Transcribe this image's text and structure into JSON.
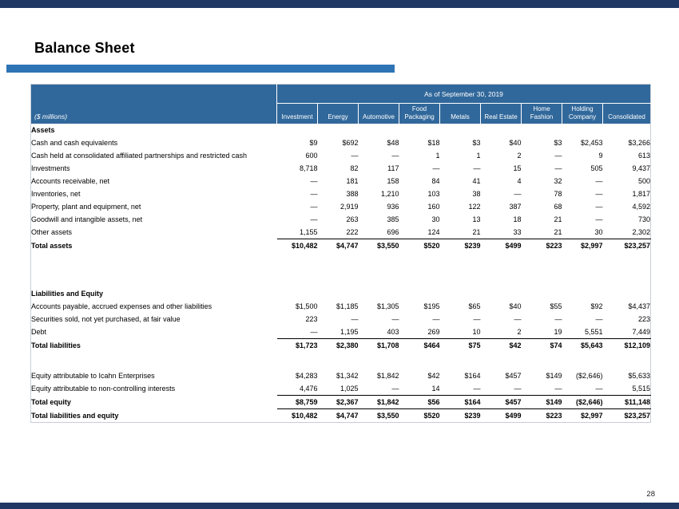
{
  "slide": {
    "title": "Balance Sheet",
    "page_number": "28"
  },
  "colors": {
    "bar_navy": "#1F3864",
    "accent_blue": "#2E74B5",
    "header_blue": "#31689B"
  },
  "table": {
    "header_span": "As of September 30, 2019",
    "row_label_header": "($ millions)",
    "columns": [
      "Investment",
      "Energy",
      "Automotive",
      "Food Packaging",
      "Metals",
      "Real Estate",
      "Home Fashion",
      "Holding Company",
      "Consolidated"
    ],
    "rows": [
      {
        "label": "Assets",
        "style": "section",
        "values": [
          "",
          "",
          "",
          "",
          "",
          "",
          "",
          "",
          ""
        ]
      },
      {
        "label": "Cash and cash equivalents",
        "style": "normal",
        "values": [
          "$9",
          "$692",
          "$48",
          "$18",
          "$3",
          "$40",
          "$3",
          "$2,453",
          "$3,266"
        ]
      },
      {
        "label": "Cash held at consolidated affiliated partnerships and restricted cash",
        "style": "normal",
        "values": [
          "600",
          "—",
          "—",
          "1",
          "1",
          "2",
          "—",
          "9",
          "613"
        ]
      },
      {
        "label": "Investments",
        "style": "normal",
        "values": [
          "8,718",
          "82",
          "117",
          "—",
          "—",
          "15",
          "—",
          "505",
          "9,437"
        ]
      },
      {
        "label": "Accounts receivable, net",
        "style": "normal",
        "values": [
          "—",
          "181",
          "158",
          "84",
          "41",
          "4",
          "32",
          "—",
          "500"
        ]
      },
      {
        "label": "Inventories, net",
        "style": "normal",
        "values": [
          "—",
          "388",
          "1,210",
          "103",
          "38",
          "—",
          "78",
          "—",
          "1,817"
        ]
      },
      {
        "label": "Property, plant and equipment, net",
        "style": "normal",
        "values": [
          "—",
          "2,919",
          "936",
          "160",
          "122",
          "387",
          "68",
          "—",
          "4,592"
        ]
      },
      {
        "label": "Goodwill and intangible assets, net",
        "style": "normal",
        "values": [
          "—",
          "263",
          "385",
          "30",
          "13",
          "18",
          "21",
          "—",
          "730"
        ]
      },
      {
        "label": "Other assets",
        "style": "rule",
        "values": [
          "1,155",
          "222",
          "696",
          "124",
          "21",
          "33",
          "21",
          "30",
          "2,302"
        ]
      },
      {
        "label": "Total assets",
        "style": "total",
        "values": [
          "$10,482",
          "$4,747",
          "$3,550",
          "$520",
          "$239",
          "$499",
          "$223",
          "$2,997",
          "$23,257"
        ]
      },
      {
        "label": "",
        "style": "spacer",
        "values": [
          "",
          "",
          "",
          "",
          "",
          "",
          "",
          "",
          ""
        ]
      },
      {
        "label": "",
        "style": "spacer",
        "values": [
          "",
          "",
          "",
          "",
          "",
          "",
          "",
          "",
          ""
        ]
      },
      {
        "label": "Liabilities and Equity",
        "style": "section",
        "values": [
          "",
          "",
          "",
          "",
          "",
          "",
          "",
          "",
          ""
        ]
      },
      {
        "label": "Accounts payable, accrued expenses and other liabilities",
        "style": "normal",
        "values": [
          "$1,500",
          "$1,185",
          "$1,305",
          "$195",
          "$65",
          "$40",
          "$55",
          "$92",
          "$4,437"
        ]
      },
      {
        "label": "Securities sold, not yet purchased, at fair value",
        "style": "normal",
        "values": [
          "223",
          "—",
          "—",
          "—",
          "—",
          "—",
          "—",
          "—",
          "223"
        ]
      },
      {
        "label": "Debt",
        "style": "rule",
        "values": [
          "—",
          "1,195",
          "403",
          "269",
          "10",
          "2",
          "19",
          "5,551",
          "7,449"
        ]
      },
      {
        "label": "Total liabilities",
        "style": "total",
        "values": [
          "$1,723",
          "$2,380",
          "$1,708",
          "$464",
          "$75",
          "$42",
          "$74",
          "$5,643",
          "$12,109"
        ]
      },
      {
        "label": "",
        "style": "spacer",
        "values": [
          "",
          "",
          "",
          "",
          "",
          "",
          "",
          "",
          ""
        ]
      },
      {
        "label": "Equity attributable to Icahn Enterprises",
        "style": "normal",
        "values": [
          "$4,283",
          "$1,342",
          "$1,842",
          "$42",
          "$164",
          "$457",
          "$149",
          "($2,646)",
          "$5,633"
        ]
      },
      {
        "label": "Equity attributable to non-controlling interests",
        "style": "rule",
        "values": [
          "4,476",
          "1,025",
          "—",
          "14",
          "—",
          "—",
          "—",
          "—",
          "5,515"
        ]
      },
      {
        "label": "Total equity",
        "style": "total rule",
        "values": [
          "$8,759",
          "$2,367",
          "$1,842",
          "$56",
          "$164",
          "$457",
          "$149",
          "($2,646)",
          "$11,148"
        ]
      },
      {
        "label": "Total liabilities and equity",
        "style": "total",
        "values": [
          "$10,482",
          "$4,747",
          "$3,550",
          "$520",
          "$239",
          "$499",
          "$223",
          "$2,997",
          "$23,257"
        ]
      }
    ]
  }
}
